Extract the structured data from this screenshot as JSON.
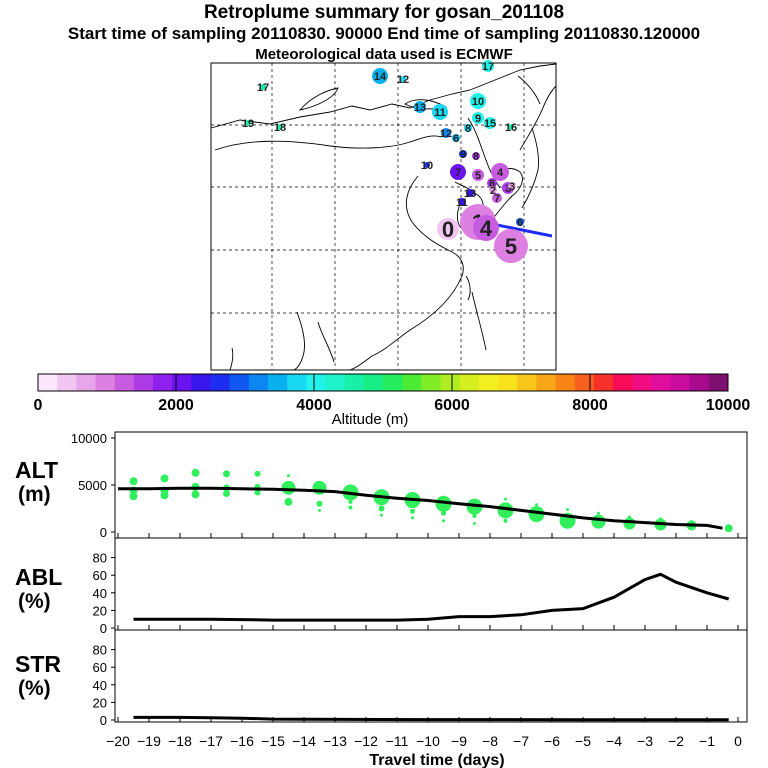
{
  "title": {
    "line1": "Retroplume summary for gosan_201108",
    "line2": "Start time of sampling 20110830. 90000     End time of sampling 20110830.120000",
    "line3": "Meteorological data used is ECMWF"
  },
  "colorbar": {
    "tick_labels": [
      "0",
      "2000",
      "4000",
      "6000",
      "8000",
      "10000"
    ],
    "label": "Altitude (m)",
    "range": [
      0,
      10000
    ],
    "colors": [
      "#fbe6fb",
      "#f2c6f2",
      "#e8a6ea",
      "#dd80e2",
      "#c85ce0",
      "#ad3ce6",
      "#8f20ee",
      "#6a12f0",
      "#3a16ee",
      "#1d2ef2",
      "#1058f2",
      "#0c86f0",
      "#0ab0ee",
      "#18d8f0",
      "#1ef2ea",
      "#1ef2c8",
      "#18f0a8",
      "#18ee86",
      "#24ec5c",
      "#4cec36",
      "#80ec26",
      "#aeee20",
      "#d4ee20",
      "#f2f020",
      "#f7e21c",
      "#f8c61a",
      "#f8a618",
      "#f88418",
      "#f86020",
      "#f8302a",
      "#f80c58",
      "#f00e82",
      "#e00e9e",
      "#c80c9e",
      "#a80a8e",
      "#801070"
    ]
  },
  "map": {
    "point_labels": [
      "1",
      "2",
      "3",
      "4",
      "5",
      "6",
      "7",
      "8",
      "9",
      "10",
      "11",
      "12",
      "13",
      "14",
      "15",
      "16",
      "17",
      "18",
      "19"
    ],
    "numbered_points": [
      {
        "label": "17",
        "color": "#18f0a8"
      },
      {
        "label": "14",
        "color": "#0ab0ee"
      },
      {
        "label": "12",
        "color": "#18d8f0"
      },
      {
        "label": "17",
        "color": "#1ef2ea"
      },
      {
        "label": "19",
        "color": "#18f0a8"
      },
      {
        "label": "18",
        "color": "#18f0a8"
      },
      {
        "label": "10",
        "color": "#1ef2ea"
      },
      {
        "label": "13",
        "color": "#0ab0ee"
      },
      {
        "label": "11",
        "color": "#18d8f0"
      },
      {
        "label": "9",
        "color": "#1ef2ea"
      },
      {
        "label": "8",
        "color": "#18d8f0"
      },
      {
        "label": "15",
        "color": "#1ef2ea"
      },
      {
        "label": "16",
        "color": "#18f0a8"
      },
      {
        "label": "12",
        "color": "#0c86f0"
      },
      {
        "label": "6",
        "color": "#0ab0ee"
      },
      {
        "label": "10",
        "color": "#1d2ef2"
      },
      {
        "label": "9",
        "color": "#1d2ef2"
      },
      {
        "label": "7",
        "color": "#6a12f0"
      },
      {
        "label": "5",
        "color": "#c85ce0"
      },
      {
        "label": "4",
        "color": "#c85ce0"
      },
      {
        "label": "6",
        "color": "#ad3ce6"
      },
      {
        "label": "3",
        "color": "#ad3ce6"
      },
      {
        "label": "3",
        "color": "#e8a6ea"
      },
      {
        "label": "2",
        "color": "#e8a6ea"
      },
      {
        "label": "1",
        "color": "#dd80e2"
      },
      {
        "label": "0",
        "color": "#f2c6f2"
      },
      {
        "label": "4",
        "color": "#c85ce0"
      },
      {
        "label": "5",
        "color": "#dd80e2"
      },
      {
        "label": "6",
        "color": "#1058f2"
      },
      {
        "label": "8",
        "color": "#ad3ce6"
      },
      {
        "label": "11",
        "color": "#3a16ee"
      },
      {
        "label": "13",
        "color": "#3a16ee"
      },
      {
        "label": "7",
        "color": "#c85ce0"
      }
    ]
  },
  "chart_data": [
    {
      "type": "scatter",
      "panel": "ALT",
      "ylabel_line1": "ALT",
      "ylabel_line2": "(m)",
      "ylim": [
        0,
        10000
      ],
      "y_ticks": [
        "10000",
        "5000",
        "0"
      ],
      "median_line": {
        "x": [
          -20,
          -19,
          -18,
          -17,
          -16,
          -15,
          -14,
          -13,
          -12,
          -11,
          -10,
          -9,
          -8,
          -7,
          -6,
          -5,
          -4,
          -3,
          -2,
          -1,
          -0.5
        ],
        "y": [
          4600,
          4600,
          4650,
          4650,
          4600,
          4550,
          4450,
          4300,
          3900,
          3600,
          3350,
          3000,
          2700,
          2300,
          1900,
          1500,
          1200,
          1000,
          800,
          700,
          400
        ]
      },
      "points": [
        {
          "x": -19.5,
          "y": 5400,
          "r": 4
        },
        {
          "x": -19.5,
          "y": 4400,
          "r": 4
        },
        {
          "x": -19.5,
          "y": 3800,
          "r": 4
        },
        {
          "x": -18.5,
          "y": 5700,
          "r": 4
        },
        {
          "x": -18.5,
          "y": 4400,
          "r": 4
        },
        {
          "x": -18.5,
          "y": 3900,
          "r": 4
        },
        {
          "x": -17.5,
          "y": 6300,
          "r": 4
        },
        {
          "x": -17.5,
          "y": 4800,
          "r": 4
        },
        {
          "x": -17.5,
          "y": 4000,
          "r": 4
        },
        {
          "x": -16.5,
          "y": 6200,
          "r": 3.5
        },
        {
          "x": -16.5,
          "y": 4700,
          "r": 3.5
        },
        {
          "x": -16.5,
          "y": 4100,
          "r": 3.5
        },
        {
          "x": -15.5,
          "y": 6200,
          "r": 3
        },
        {
          "x": -15.5,
          "y": 4800,
          "r": 3
        },
        {
          "x": -15.5,
          "y": 4200,
          "r": 3
        },
        {
          "x": -14.5,
          "y": 6000,
          "r": 1.5
        },
        {
          "x": -14.5,
          "y": 4700,
          "r": 7
        },
        {
          "x": -14.5,
          "y": 3200,
          "r": 4
        },
        {
          "x": -13.5,
          "y": 5200,
          "r": 2
        },
        {
          "x": -13.5,
          "y": 4700,
          "r": 7
        },
        {
          "x": -13.5,
          "y": 3000,
          "r": 3
        },
        {
          "x": -13.5,
          "y": 2300,
          "r": 1.5
        },
        {
          "x": -12.5,
          "y": 4200,
          "r": 8
        },
        {
          "x": -12.5,
          "y": 3200,
          "r": 2
        },
        {
          "x": -12.5,
          "y": 2600,
          "r": 2
        },
        {
          "x": -11.5,
          "y": 3700,
          "r": 8
        },
        {
          "x": -11.5,
          "y": 2500,
          "r": 3
        },
        {
          "x": -11.5,
          "y": 1800,
          "r": 1.5
        },
        {
          "x": -10.5,
          "y": 3400,
          "r": 8
        },
        {
          "x": -10.5,
          "y": 2200,
          "r": 2.5
        },
        {
          "x": -10.5,
          "y": 1500,
          "r": 1.5
        },
        {
          "x": -9.5,
          "y": 3000,
          "r": 8
        },
        {
          "x": -9.5,
          "y": 2000,
          "r": 2.5
        },
        {
          "x": -9.5,
          "y": 1200,
          "r": 1.5
        },
        {
          "x": -8.5,
          "y": 2700,
          "r": 8
        },
        {
          "x": -8.5,
          "y": 1700,
          "r": 2
        },
        {
          "x": -8.5,
          "y": 900,
          "r": 1.5
        },
        {
          "x": -7.5,
          "y": 3500,
          "r": 1.5
        },
        {
          "x": -7.5,
          "y": 2300,
          "r": 8
        },
        {
          "x": -7.5,
          "y": 1200,
          "r": 2
        },
        {
          "x": -6.5,
          "y": 2900,
          "r": 1.5
        },
        {
          "x": -6.5,
          "y": 1900,
          "r": 8
        },
        {
          "x": -5.5,
          "y": 2400,
          "r": 1.5
        },
        {
          "x": -5.5,
          "y": 1200,
          "r": 8
        },
        {
          "x": -4.5,
          "y": 2000,
          "r": 1.5
        },
        {
          "x": -4.5,
          "y": 1100,
          "r": 7
        },
        {
          "x": -3.5,
          "y": 1600,
          "r": 1.5
        },
        {
          "x": -3.5,
          "y": 900,
          "r": 6
        },
        {
          "x": -2.5,
          "y": 1400,
          "r": 1.5
        },
        {
          "x": -2.5,
          "y": 800,
          "r": 6
        },
        {
          "x": -1.5,
          "y": 1100,
          "r": 1.5
        },
        {
          "x": -1.5,
          "y": 700,
          "r": 5
        },
        {
          "x": -0.3,
          "y": 400,
          "r": 4
        }
      ]
    },
    {
      "type": "line",
      "panel": "ABL",
      "ylabel_line1": "ABL",
      "ylabel_line2": "(%)",
      "ylim": [
        0,
        100
      ],
      "y_ticks": [
        "80",
        "60",
        "40",
        "20",
        "0"
      ],
      "x": [
        -19.5,
        -19,
        -18,
        -17,
        -16,
        -15,
        -14,
        -13,
        -12,
        -11,
        -10,
        -9,
        -8,
        -7,
        -6,
        -5,
        -4,
        -3,
        -2.5,
        -2,
        -1,
        -0.3
      ],
      "y": [
        10,
        10,
        10,
        10,
        9.5,
        9,
        9,
        9,
        9,
        9,
        10,
        13,
        13,
        15,
        20,
        22,
        35,
        55,
        61,
        52,
        40,
        33
      ]
    },
    {
      "type": "line",
      "panel": "STR",
      "ylabel_line1": "STR",
      "ylabel_line2": "(%)",
      "ylim": [
        0,
        100
      ],
      "y_ticks": [
        "80",
        "60",
        "40",
        "20",
        "0"
      ],
      "x": [
        -19.5,
        -18,
        -17,
        -16,
        -15,
        -10,
        -5,
        -0.3
      ],
      "y": [
        3,
        3,
        2.5,
        2,
        1,
        0.5,
        0.3,
        0.3
      ]
    }
  ],
  "xaxis": {
    "tick_labels": [
      "−20",
      "−19",
      "−18",
      "−17",
      "−16",
      "−15",
      "−14",
      "−13",
      "−12",
      "−11",
      "−10",
      "−9",
      "−8",
      "−7",
      "−6",
      "−5",
      "−4",
      "−3",
      "−2",
      "−1",
      "0"
    ],
    "label": "Travel time (days)",
    "xlim": [
      -20,
      0
    ]
  }
}
